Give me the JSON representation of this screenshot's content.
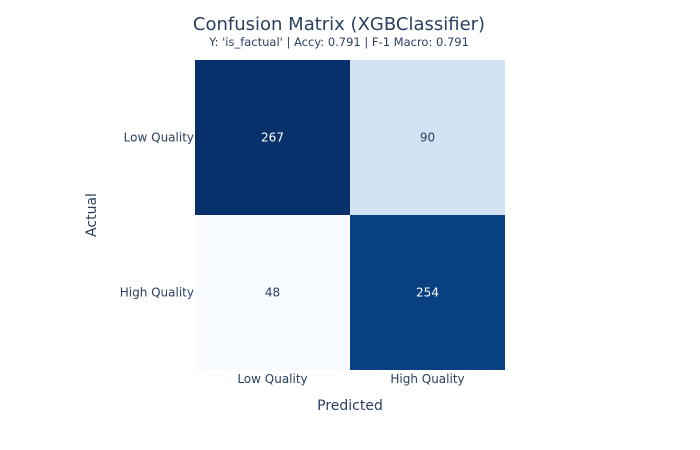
{
  "chart_data": {
    "type": "heatmap",
    "title": "Confusion Matrix (XGBClassifier)",
    "subtitle": "Y: 'is_factual' | Accy: 0.791 | F-1 Macro: 0.791",
    "xlabel": "Predicted",
    "ylabel": "Actual",
    "x_categories": [
      "Low Quality",
      "High Quality"
    ],
    "y_categories": [
      "Low Quality",
      "High Quality"
    ],
    "values": [
      [
        267,
        90
      ],
      [
        48,
        254
      ]
    ],
    "colorscale": "Blues",
    "color_min": 48,
    "color_max": 267,
    "show_colorbar": false,
    "grid": false
  }
}
